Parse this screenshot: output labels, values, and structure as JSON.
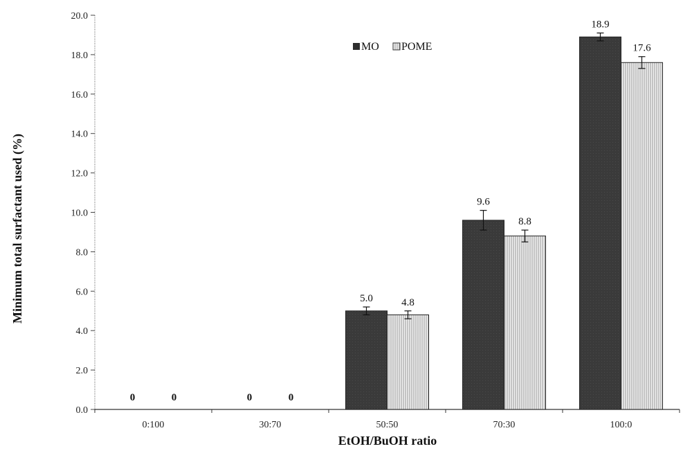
{
  "chart_data": {
    "type": "bar",
    "title": "",
    "xlabel": "EtOH/BuOH ratio",
    "ylabel": "Minimum total surfactant used (%)",
    "ylim": [
      0,
      20
    ],
    "yticks": [
      "0.0",
      "2.0",
      "4.0",
      "6.0",
      "8.0",
      "10.0",
      "12.0",
      "14.0",
      "16.0",
      "18.0",
      "20.0"
    ],
    "categories": [
      "0:100",
      "30:70",
      "50:50",
      "70:30",
      "100:0"
    ],
    "series": [
      {
        "name": "MO",
        "values": [
          0,
          0,
          5.0,
          9.6,
          18.9
        ],
        "labels": [
          "0",
          "0",
          "5.0",
          "9.6",
          "18.9"
        ],
        "errors": [
          0,
          0,
          0.2,
          0.5,
          0.2
        ],
        "color": "#3a3a3a"
      },
      {
        "name": "POME",
        "values": [
          0,
          0,
          4.8,
          8.8,
          17.6
        ],
        "labels": [
          "0",
          "0",
          "4.8",
          "8.8",
          "17.6"
        ],
        "errors": [
          0,
          0,
          0.2,
          0.3,
          0.3
        ],
        "color": "#dcdcdc"
      }
    ],
    "legend_position": "top-center",
    "grid": false
  }
}
